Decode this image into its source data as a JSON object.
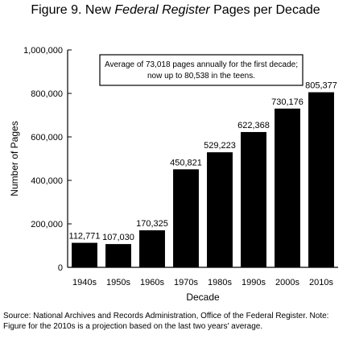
{
  "figure": {
    "title_prefix": "Figure 9. New ",
    "title_italic": "Federal Register",
    "title_suffix": " Pages per Decade"
  },
  "source_note": "Source: National Archives and Records Administration, Office of the Federal Register. Note: Figure for the 2010s is a projection based on the last two years' average.",
  "chart_data": {
    "type": "bar",
    "categories": [
      "1940s",
      "1950s",
      "1960s",
      "1970s",
      "1980s",
      "1990s",
      "2000s",
      "2010s"
    ],
    "values": [
      112771,
      107030,
      170325,
      450821,
      529223,
      622368,
      730176,
      805377
    ],
    "value_labels": [
      "112,771",
      "107,030",
      "170,325",
      "450,821",
      "529,223",
      "622,368",
      "730,176",
      "805,377"
    ],
    "xlabel": "Decade",
    "ylabel": "Number of Pages",
    "ylim": [
      0,
      1000000
    ],
    "yticks": [
      0,
      200000,
      400000,
      600000,
      800000,
      1000000
    ],
    "ytick_labels": [
      "0",
      "200,000",
      "400,000",
      "600,000",
      "800,000",
      "1,000,000"
    ],
    "annotation_lines": [
      "Average of 73,018 pages annually for the first decade;",
      "now up to 80,538 in the teens."
    ],
    "bar_color": "#000000",
    "grid": false
  }
}
